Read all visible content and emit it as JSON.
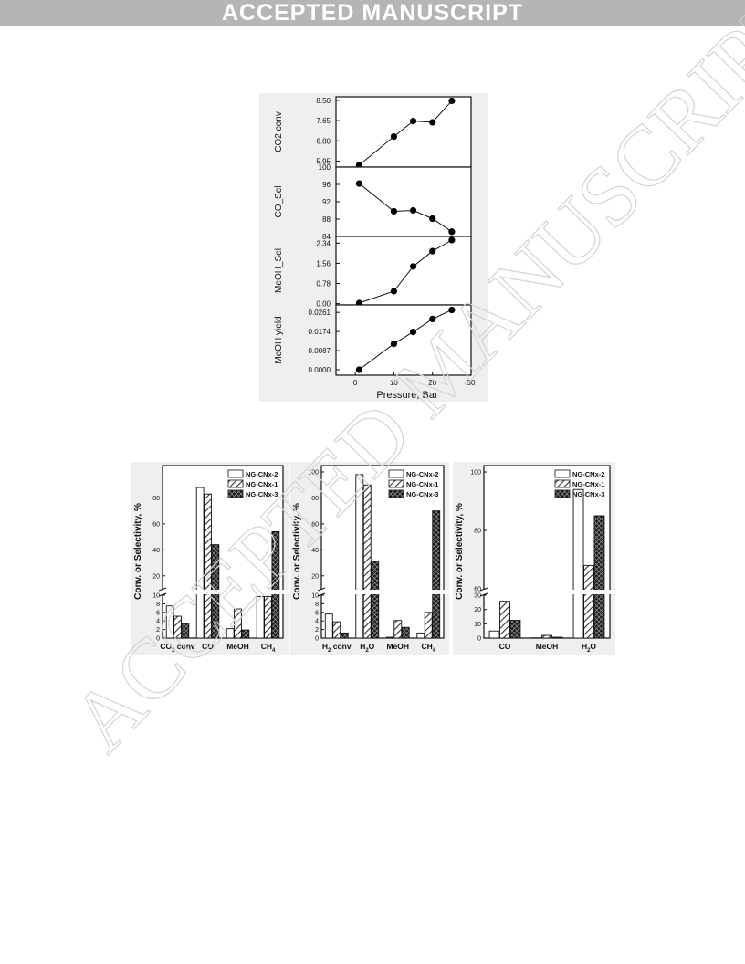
{
  "banner": {
    "text": "ACCEPTED MANUSCRIPT",
    "bg": "#b5b5b5"
  },
  "watermark": {
    "text": "ACCEPTED MANUSCRIPT"
  },
  "figure_top": {
    "xlabel": "Pressure, Bar",
    "xticks": [
      0,
      10,
      20,
      30
    ],
    "xlim": [
      -5,
      30
    ],
    "panels": [
      {
        "ylabel": "CO2 conv",
        "ylim": [
          5.7,
          8.65
        ],
        "ytick_labels": [
          "5.95",
          "6.80",
          "7.65",
          "8.50"
        ],
        "yticks": [
          5.95,
          6.8,
          7.65,
          8.5
        ]
      },
      {
        "ylabel": "CO_Sel",
        "ylim": [
          84,
          100
        ],
        "ytick_labels": [
          "84",
          "88",
          "92",
          "96",
          "100"
        ],
        "yticks": [
          84,
          88,
          92,
          96,
          100
        ]
      },
      {
        "ylabel": "MeOH_Sel",
        "ylim": [
          -0.05,
          2.6
        ],
        "ytick_labels": [
          "0.00",
          "0.78",
          "1.56",
          "2.34"
        ],
        "yticks": [
          0,
          0.78,
          1.56,
          2.34
        ]
      },
      {
        "ylabel": "MeOH yield",
        "ylim": [
          -0.0025,
          0.0295
        ],
        "ytick_labels": [
          "0.0000",
          "0.0087",
          "0.0174",
          "0.0261"
        ],
        "yticks": [
          0,
          0.0087,
          0.0174,
          0.0261
        ]
      }
    ]
  },
  "chart_data": [
    {
      "type": "line",
      "x": [
        1,
        10,
        15,
        20,
        25
      ],
      "values": [
        5.78,
        6.98,
        7.63,
        7.58,
        8.48
      ],
      "ylabel": "CO2 conv",
      "xlabel": "Pressure, Bar"
    },
    {
      "type": "line",
      "x": [
        1,
        10,
        15,
        20,
        25
      ],
      "values": [
        96.2,
        89.8,
        90.0,
        88.1,
        85.1
      ],
      "ylabel": "CO_Sel",
      "xlabel": "Pressure, Bar"
    },
    {
      "type": "line",
      "x": [
        1,
        10,
        15,
        20,
        25
      ],
      "values": [
        0.02,
        0.48,
        1.44,
        2.03,
        2.46
      ],
      "ylabel": "MeOH_Sel",
      "xlabel": "Pressure, Bar"
    },
    {
      "type": "line",
      "x": [
        1,
        10,
        15,
        20,
        25
      ],
      "values": [
        0.0,
        0.0118,
        0.0172,
        0.0231,
        0.0272
      ],
      "ylabel": "MeOH yield",
      "xlabel": "Pressure, Bar"
    },
    {
      "type": "bar",
      "ylabel": "Conv. or Selectivity, %",
      "categories": [
        "CO2 conv",
        "CO",
        "MeOH",
        "CH4"
      ],
      "broken_axis": {
        "lower": [
          0,
          10
        ],
        "upper": [
          10,
          100
        ]
      },
      "yticks_lower": [
        "0",
        "2",
        "4",
        "6",
        "8",
        "10"
      ],
      "yticks_upper": [
        "20",
        "40",
        "60",
        "80"
      ],
      "series": [
        {
          "name": "NG-CNx-2",
          "values": [
            7.5,
            88,
            2.2,
            9.7
          ]
        },
        {
          "name": "NG-CNx-1",
          "values": [
            5.1,
            83,
            6.8,
            9.7
          ]
        },
        {
          "name": "NG-CNx-3",
          "values": [
            3.5,
            44,
            1.9,
            54
          ]
        }
      ]
    },
    {
      "type": "bar",
      "ylabel": "Conv. or Selectivity, %",
      "categories": [
        "H2 conv",
        "H2O",
        "MeOH",
        "CH4"
      ],
      "broken_axis": {
        "lower": [
          0,
          10
        ],
        "upper": [
          10,
          100
        ]
      },
      "yticks_lower": [
        "0",
        "2",
        "4",
        "6",
        "8",
        "10"
      ],
      "yticks_upper": [
        "20",
        "40",
        "60",
        "80",
        "100"
      ],
      "series": [
        {
          "name": "NG-CNx-2",
          "values": [
            5.6,
            98,
            0.2,
            1.2
          ]
        },
        {
          "name": "NG-CNx-1",
          "values": [
            3.8,
            90,
            4.1,
            6.0
          ]
        },
        {
          "name": "NG-CNx-3",
          "values": [
            1.2,
            31,
            2.5,
            70
          ]
        }
      ]
    },
    {
      "type": "bar",
      "ylabel": "Conv. or Selectivity, %",
      "categories": [
        "CO",
        "MeOH",
        "H2O"
      ],
      "broken_axis": {
        "lower": [
          0,
          35
        ],
        "upper": [
          60,
          100
        ]
      },
      "yticks_lower": [
        "0",
        "10",
        "20",
        "30"
      ],
      "yticks_upper": [
        "60",
        "80",
        "100"
      ],
      "series": [
        {
          "name": "NG-CNx-2",
          "values": [
            5.8,
            0.2,
            94
          ]
        },
        {
          "name": "NG-CNx-1",
          "values": [
            30,
            2.2,
            68
          ]
        },
        {
          "name": "NG-CNx-3",
          "values": [
            14.5,
            0.7,
            85
          ]
        }
      ]
    }
  ],
  "bar_labels": [
    {
      "categories": [
        {
          "main": "CO",
          "sub": "2",
          "rest": " conv"
        },
        {
          "main": "CO",
          "sub": "",
          "rest": ""
        },
        {
          "main": "MeOH",
          "sub": "",
          "rest": ""
        },
        {
          "main": "CH",
          "sub": "4",
          "rest": ""
        }
      ]
    },
    {
      "categories": [
        {
          "main": "H",
          "sub": "2",
          "rest": " conv"
        },
        {
          "main": "H",
          "sub": "2",
          "rest": "O"
        },
        {
          "main": "MeOH",
          "sub": "",
          "rest": ""
        },
        {
          "main": "CH",
          "sub": "4",
          "rest": ""
        }
      ]
    },
    {
      "categories": [
        {
          "main": "CO",
          "sub": "",
          "rest": ""
        },
        {
          "main": "MeOH",
          "sub": "",
          "rest": ""
        },
        {
          "main": "H",
          "sub": "2",
          "rest": "O"
        }
      ]
    }
  ]
}
